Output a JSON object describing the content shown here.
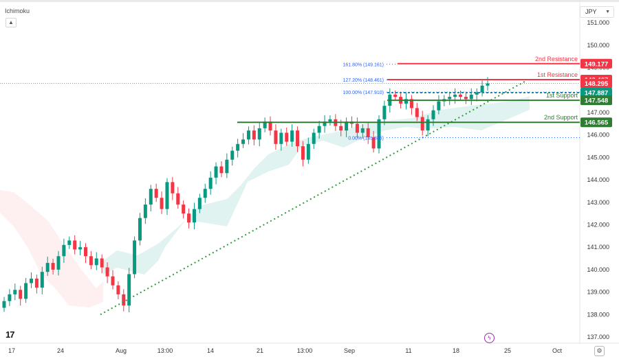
{
  "indicator": "Ichimoku",
  "currency": "JPY",
  "chart_data": {
    "type": "candlestick",
    "price_labels": [
      "151.000",
      "150.000",
      "149.000",
      "148.000",
      "147.000",
      "146.000",
      "145.000",
      "144.000",
      "143.000",
      "142.000",
      "141.000",
      "140.000",
      "139.000",
      "138.000",
      "137.000"
    ],
    "time_labels": [
      "17",
      "24",
      "Aug",
      "13:00",
      "14",
      "21",
      "13:00",
      "Sep",
      "11",
      "18",
      "25",
      "Oct"
    ],
    "ylim": [
      136.7,
      151.4
    ],
    "levels": [
      {
        "label": "2nd Resistance",
        "price": "149.177",
        "value": 149.177,
        "color": "#f23645"
      },
      {
        "label": "1st Resistance",
        "price": "148.467",
        "value": 148.467,
        "color": "#f23645"
      },
      {
        "label": "",
        "price": "148.295",
        "value": 148.295,
        "color": "#f23645"
      },
      {
        "label": "",
        "price": "147.887",
        "value": 147.887,
        "color": "#089981"
      },
      {
        "label": "1st Support",
        "price": "147.548",
        "value": 147.548,
        "color": "#2e7d32"
      },
      {
        "label": "2nd Support",
        "price": "146.565",
        "value": 146.565,
        "color": "#2e7d32"
      }
    ],
    "fib_levels": [
      {
        "label": "161.80% (149.161)",
        "value": 149.161
      },
      {
        "label": "127.20% (148.461)",
        "value": 148.461
      },
      {
        "label": "100.00% (147.910)",
        "value": 147.91
      },
      {
        "label": "0.00% (145.885)",
        "value": 145.885
      }
    ],
    "close_sample": [
      138.6,
      138.9,
      139.1,
      138.7,
      139.4,
      139.6,
      139.2,
      139.9,
      140.3,
      140.0,
      140.6,
      141.1,
      141.3,
      140.9,
      141.0,
      140.6,
      140.2,
      140.5,
      140.1,
      139.7,
      139.3,
      138.9,
      138.4,
      139.8,
      141.3,
      142.3,
      142.9,
      143.6,
      143.2,
      142.7,
      143.9,
      143.4,
      142.9,
      142.5,
      142.1,
      142.7,
      143.2,
      143.6,
      144.1,
      144.6,
      144.3,
      144.9,
      145.3,
      145.6,
      145.8,
      146.2,
      145.8,
      146.3,
      146.6,
      146.2,
      145.6,
      146.1,
      145.7,
      146.2,
      145.5,
      144.9,
      145.6,
      146.1,
      146.4,
      146.6,
      146.7,
      146.4,
      146.2,
      146.6,
      146.5,
      146.1,
      146.3,
      145.9,
      145.4,
      146.7,
      147.3,
      147.8,
      147.7,
      147.4,
      147.6,
      147.2,
      146.8,
      146.2,
      146.7,
      147.1,
      147.5,
      147.6,
      147.7,
      147.8,
      147.7,
      147.6,
      147.8,
      147.9,
      148.2,
      148.3
    ],
    "trendline": {
      "from": {
        "x": "Jul 27",
        "y": 138.0
      },
      "to": {
        "x": "Sep 26",
        "y": 148.4
      }
    },
    "cloud": {
      "bearish_color": "rgba(242,54,69,0.08)",
      "bullish_color": "rgba(8,153,129,0.12)"
    },
    "grid": false
  }
}
